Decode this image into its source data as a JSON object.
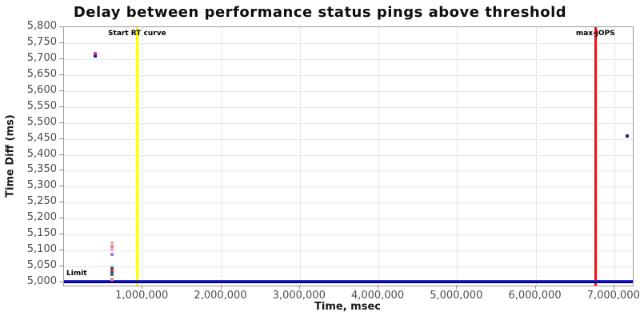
{
  "chart_data": {
    "type": "scatter",
    "title": "Delay between performance status pings above threshold",
    "xlabel": "Time, msec",
    "ylabel": "Time Diff (ms)",
    "xlim": [
      0,
      7236000
    ],
    "ylim": [
      4990,
      5800
    ],
    "grid": true,
    "legend_position": "none",
    "x_ticks": [
      {
        "v": 1000000,
        "label": "1,000,000"
      },
      {
        "v": 2000000,
        "label": "2,000,000"
      },
      {
        "v": 3000000,
        "label": "3,000,000"
      },
      {
        "v": 4000000,
        "label": "4,000,000"
      },
      {
        "v": 5000000,
        "label": "5,000,000"
      },
      {
        "v": 6000000,
        "label": "6,000,000"
      },
      {
        "v": 7000000,
        "label": "7,000,000"
      }
    ],
    "y_ticks": [
      {
        "v": 5000,
        "label": "5,000"
      },
      {
        "v": 5050,
        "label": "5,050"
      },
      {
        "v": 5100,
        "label": "5,100"
      },
      {
        "v": 5150,
        "label": "5,150"
      },
      {
        "v": 5200,
        "label": "5,200"
      },
      {
        "v": 5250,
        "label": "5,250"
      },
      {
        "v": 5300,
        "label": "5,300"
      },
      {
        "v": 5350,
        "label": "5,350"
      },
      {
        "v": 5400,
        "label": "5,400"
      },
      {
        "v": 5450,
        "label": "5,450"
      },
      {
        "v": 5500,
        "label": "5,500"
      },
      {
        "v": 5550,
        "label": "5,550"
      },
      {
        "v": 5600,
        "label": "5,600"
      },
      {
        "v": 5650,
        "label": "5,650"
      },
      {
        "v": 5700,
        "label": "5,700"
      },
      {
        "v": 5750,
        "label": "5,750"
      },
      {
        "v": 5800,
        "label": "5,800"
      }
    ],
    "annotations": [
      {
        "kind": "vline",
        "x": 930000,
        "color": "#ffff00",
        "label": "Start RT curve"
      },
      {
        "kind": "vline",
        "x": 6760000,
        "color": "#ee1111",
        "label": "max-jOPS"
      },
      {
        "kind": "hline",
        "y": 5000,
        "color": "#2b2bd6",
        "color2": "#00004d",
        "label": "Limit"
      }
    ],
    "points": [
      {
        "x": 400000,
        "y": 5716,
        "color": "#df3fa5"
      },
      {
        "x": 400000,
        "y": 5709,
        "color": "#28286f"
      },
      {
        "x": 610000,
        "y": 5122,
        "color": "#f08fc4"
      },
      {
        "x": 610000,
        "y": 5118,
        "color": "#e6e663"
      },
      {
        "x": 610000,
        "y": 5114,
        "color": "#93b050"
      },
      {
        "x": 610000,
        "y": 5110,
        "color": "#e07fdd"
      },
      {
        "x": 610000,
        "y": 5103,
        "color": "#f2a9cf"
      },
      {
        "x": 610000,
        "y": 5088,
        "color": "#8888ee"
      },
      {
        "x": 610000,
        "y": 5051,
        "color": "#8fe6e6"
      },
      {
        "x": 610000,
        "y": 5043,
        "color": "#7e2b2b"
      },
      {
        "x": 610000,
        "y": 5038,
        "color": "#c43c3c"
      },
      {
        "x": 610000,
        "y": 5030,
        "color": "#3d549c"
      },
      {
        "x": 610000,
        "y": 5024,
        "color": "#2f7d5a"
      },
      {
        "x": 610000,
        "y": 5010,
        "color": "#ee8a9e"
      },
      {
        "x": 7165000,
        "y": 5458,
        "color": "#3f1d73"
      }
    ]
  },
  "colors": {
    "grid": "#d9d9d9",
    "axis": "#8c8c8c",
    "tick_text": "#4d4d4d",
    "title_text": "#0d0d0d"
  }
}
